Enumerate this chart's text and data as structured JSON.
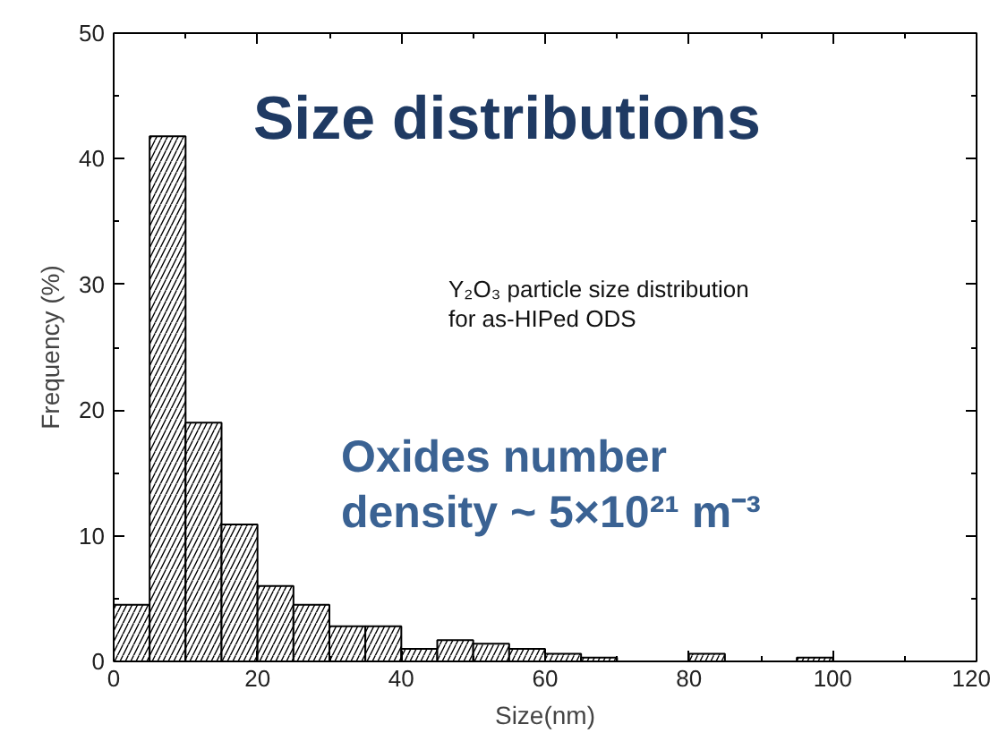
{
  "chart_data": {
    "type": "histogram",
    "title": "Size distributions",
    "xlabel": "Size(nm)",
    "ylabel": "Frequency (%)",
    "bins": [
      0,
      5,
      10,
      15,
      20,
      25,
      30,
      35,
      40,
      45,
      50,
      55,
      60,
      65,
      70,
      75,
      80,
      85,
      90,
      95,
      100
    ],
    "values": [
      4.5,
      41.8,
      19,
      10.9,
      6,
      4.5,
      2.8,
      2.8,
      1.0,
      1.7,
      1.4,
      1.0,
      0.6,
      0.3,
      0,
      0,
      0.6,
      0,
      0,
      0.3
    ],
    "color": "#000000",
    "xlim": [
      0,
      120
    ],
    "xticks": [
      0,
      20,
      40,
      60,
      80,
      100,
      120
    ],
    "ylim": [
      0,
      50
    ],
    "yticks": [
      0,
      10,
      20,
      30,
      40,
      50
    ],
    "annotations": [
      "Y₂O₃ particle size distribution\nfor as-HIPed ODS",
      "Oxides number\ndensity ~ 5×10²¹ m⁻³"
    ],
    "grid": false
  }
}
